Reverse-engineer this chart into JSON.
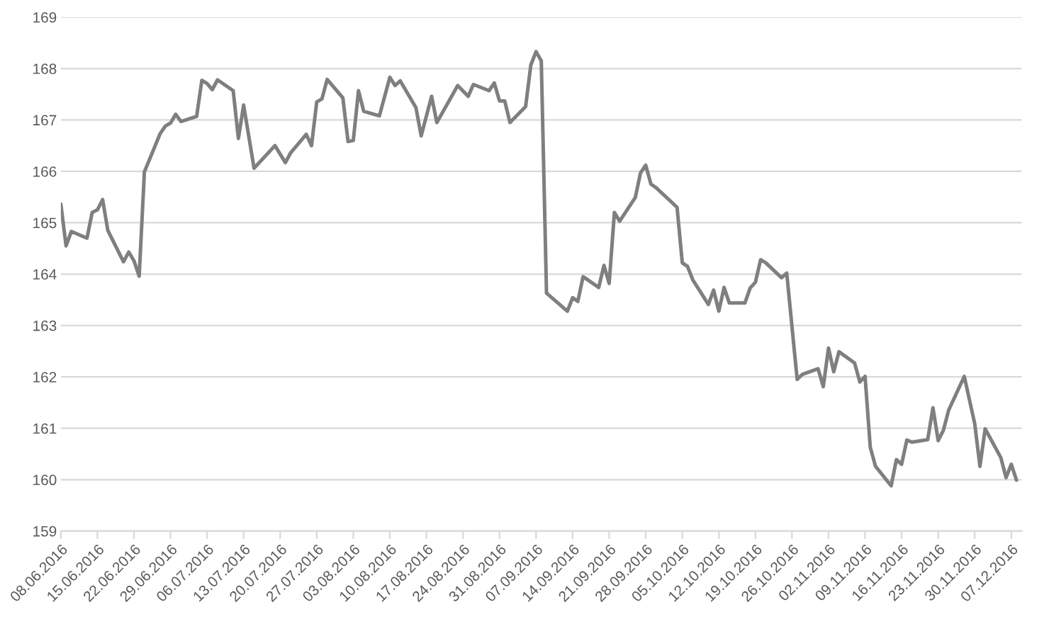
{
  "chart_data": {
    "type": "line",
    "x": [
      "2016-06-08",
      "2016-06-09",
      "2016-06-10",
      "2016-06-13",
      "2016-06-14",
      "2016-06-15",
      "2016-06-16",
      "2016-06-17",
      "2016-06-20",
      "2016-06-21",
      "2016-06-22",
      "2016-06-23",
      "2016-06-24",
      "2016-06-27",
      "2016-06-28",
      "2016-06-29",
      "2016-06-30",
      "2016-07-01",
      "2016-07-04",
      "2016-07-05",
      "2016-07-06",
      "2016-07-07",
      "2016-07-08",
      "2016-07-11",
      "2016-07-12",
      "2016-07-13",
      "2016-07-15",
      "2016-07-19",
      "2016-07-21",
      "2016-07-22",
      "2016-07-25",
      "2016-07-26",
      "2016-07-27",
      "2016-07-28",
      "2016-07-29",
      "2016-08-01",
      "2016-08-02",
      "2016-08-03",
      "2016-08-04",
      "2016-08-05",
      "2016-08-08",
      "2016-08-10",
      "2016-08-11",
      "2016-08-12",
      "2016-08-15",
      "2016-08-16",
      "2016-08-18",
      "2016-08-19",
      "2016-08-23",
      "2016-08-25",
      "2016-08-26",
      "2016-08-29",
      "2016-08-30",
      "2016-08-31",
      "2016-09-01",
      "2016-09-02",
      "2016-09-05",
      "2016-09-06",
      "2016-09-07",
      "2016-09-08",
      "2016-09-09",
      "2016-09-13",
      "2016-09-14",
      "2016-09-15",
      "2016-09-16",
      "2016-09-19",
      "2016-09-20",
      "2016-09-21",
      "2016-09-22",
      "2016-09-23",
      "2016-09-26",
      "2016-09-27",
      "2016-09-28",
      "2016-09-29",
      "2016-09-30",
      "2016-10-04",
      "2016-10-05",
      "2016-10-06",
      "2016-10-07",
      "2016-10-10",
      "2016-10-11",
      "2016-10-12",
      "2016-10-13",
      "2016-10-14",
      "2016-10-17",
      "2016-10-18",
      "2016-10-19",
      "2016-10-20",
      "2016-10-21",
      "2016-10-24",
      "2016-10-25",
      "2016-10-27",
      "2016-10-28",
      "2016-10-31",
      "2016-11-01",
      "2016-11-02",
      "2016-11-03",
      "2016-11-04",
      "2016-11-07",
      "2016-11-08",
      "2016-11-09",
      "2016-11-10",
      "2016-11-11",
      "2016-11-14",
      "2016-11-15",
      "2016-11-16",
      "2016-11-17",
      "2016-11-18",
      "2016-11-21",
      "2016-11-22",
      "2016-11-23",
      "2016-11-24",
      "2016-11-25",
      "2016-11-28",
      "2016-11-30",
      "2016-12-01",
      "2016-12-02",
      "2016-12-05",
      "2016-12-06",
      "2016-12-07",
      "2016-12-08"
    ],
    "series": [
      {
        "color": "#7f7f7f",
        "values": [
          165.36,
          164.55,
          164.83,
          164.7,
          165.2,
          165.25,
          165.45,
          164.85,
          164.24,
          164.43,
          164.26,
          163.96,
          165.99,
          166.73,
          166.88,
          166.94,
          167.11,
          166.97,
          167.07,
          167.77,
          167.71,
          167.59,
          167.78,
          167.57,
          166.64,
          167.29,
          166.06,
          166.5,
          166.17,
          166.36,
          166.72,
          166.5,
          167.35,
          167.41,
          167.79,
          167.43,
          166.58,
          166.6,
          167.57,
          167.17,
          167.08,
          167.83,
          167.67,
          167.76,
          167.24,
          166.69,
          167.46,
          166.95,
          167.67,
          167.46,
          167.69,
          167.57,
          167.72,
          167.37,
          167.37,
          166.95,
          167.26,
          168.07,
          168.33,
          168.15,
          163.63,
          163.28,
          163.54,
          163.47,
          163.95,
          163.74,
          164.17,
          163.82,
          165.2,
          165.03,
          165.49,
          165.97,
          166.12,
          165.75,
          165.68,
          165.3,
          164.22,
          164.15,
          163.89,
          163.41,
          163.69,
          163.28,
          163.74,
          163.44,
          163.44,
          163.73,
          163.84,
          164.28,
          164.22,
          163.93,
          164.02,
          161.95,
          162.05,
          162.16,
          161.81,
          162.56,
          162.1,
          162.49,
          162.27,
          161.9,
          162.01,
          160.63,
          160.26,
          159.88,
          160.39,
          160.3,
          160.77,
          160.73,
          160.78,
          161.4,
          160.76,
          160.96,
          161.35,
          162.01,
          161.09,
          160.26,
          160.99,
          160.43,
          160.04,
          160.3,
          159.99
        ]
      }
    ],
    "xlim": [
      "2016-06-08",
      "2016-12-09"
    ],
    "xticks": [
      {
        "value": "2016-06-08",
        "label": "08.06.2016"
      },
      {
        "value": "2016-06-15",
        "label": "15.06.2016"
      },
      {
        "value": "2016-06-22",
        "label": "22.06.2016"
      },
      {
        "value": "2016-06-29",
        "label": "29.06.2016"
      },
      {
        "value": "2016-07-06",
        "label": "06.07.2016"
      },
      {
        "value": "2016-07-13",
        "label": "13.07.2016"
      },
      {
        "value": "2016-07-20",
        "label": "20.07.2016"
      },
      {
        "value": "2016-07-27",
        "label": "27.07.2016"
      },
      {
        "value": "2016-08-03",
        "label": "03.08.2016"
      },
      {
        "value": "2016-08-10",
        "label": "10.08.2016"
      },
      {
        "value": "2016-08-17",
        "label": "17.08.2016"
      },
      {
        "value": "2016-08-24",
        "label": "24.08.2016"
      },
      {
        "value": "2016-08-31",
        "label": "31.08.2016"
      },
      {
        "value": "2016-09-07",
        "label": "07.09.2016"
      },
      {
        "value": "2016-09-14",
        "label": "14.09.2016"
      },
      {
        "value": "2016-09-21",
        "label": "21.09.2016"
      },
      {
        "value": "2016-09-28",
        "label": "28.09.2016"
      },
      {
        "value": "2016-10-05",
        "label": "05.10.2016"
      },
      {
        "value": "2016-10-12",
        "label": "12.10.2016"
      },
      {
        "value": "2016-10-19",
        "label": "19.10.2016"
      },
      {
        "value": "2016-10-26",
        "label": "26.10.2016"
      },
      {
        "value": "2016-11-02",
        "label": "02.11.2016"
      },
      {
        "value": "2016-11-09",
        "label": "09.11.2016"
      },
      {
        "value": "2016-11-16",
        "label": "16.11.2016"
      },
      {
        "value": "2016-11-23",
        "label": "23.11.2016"
      },
      {
        "value": "2016-11-30",
        "label": "30.11.2016"
      },
      {
        "value": "2016-12-07",
        "label": "07.12.2016"
      }
    ],
    "ylim": [
      159,
      169
    ],
    "yticks": [
      159,
      160,
      161,
      162,
      163,
      164,
      165,
      166,
      167,
      168,
      169
    ],
    "grid": "y",
    "marker": "none",
    "line_style": "solid"
  }
}
